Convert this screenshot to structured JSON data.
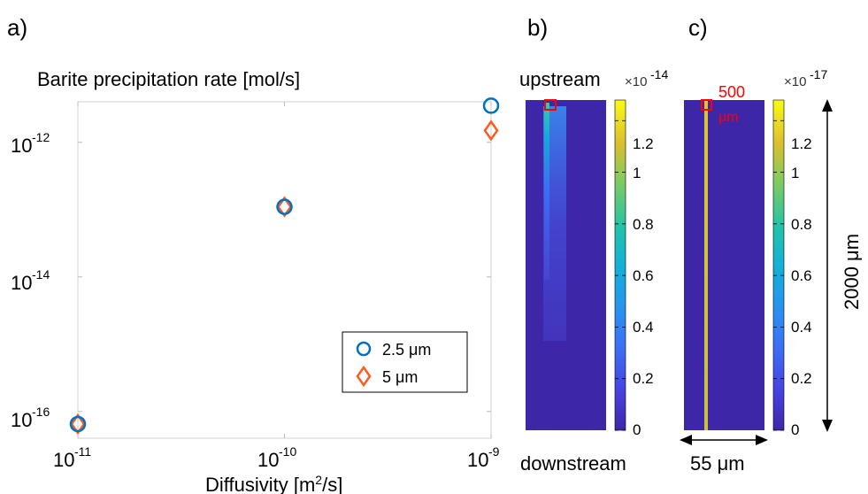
{
  "panels": {
    "a": "a)",
    "b": "b)",
    "c": "c)"
  },
  "chart_data": [
    {
      "type": "scatter",
      "title": "Barite precipitation rate [mol/s]",
      "xlabel_base": "Diffusivity [m",
      "xlabel_sup": "2",
      "xlabel_end": "/s]",
      "ylabel": "",
      "xscale": "log",
      "yscale": "log",
      "xlim": [
        1e-11,
        1e-09
      ],
      "ylim": [
        4e-17,
        4e-12
      ],
      "xticks": [
        {
          "base": "10",
          "exp": "-11",
          "value": 1e-11
        },
        {
          "base": "10",
          "exp": "-10",
          "value": 1e-10
        },
        {
          "base": "10",
          "exp": "-9",
          "value": 1e-09
        }
      ],
      "yticks": [
        {
          "base": "10",
          "exp": "-16",
          "value": 1e-16
        },
        {
          "base": "10",
          "exp": "-14",
          "value": 1e-14
        },
        {
          "base": "10",
          "exp": "-12",
          "value": 1e-12
        }
      ],
      "series": [
        {
          "name": "2.5 μm",
          "marker": "circle",
          "color": "#0072bd",
          "x": [
            1e-11,
            1e-10,
            1e-09
          ],
          "y": [
            6.5e-17,
            1.1e-13,
            3.5e-12
          ]
        },
        {
          "name": "5 μm",
          "marker": "diamond",
          "color": "#ff5a1f",
          "x": [
            1e-11,
            1e-10,
            1e-09
          ],
          "y": [
            6.5e-17,
            1.1e-13,
            1.5e-12
          ]
        }
      ],
      "legend_position": "bottom-right"
    },
    {
      "type": "heatmap",
      "top_label": "upstream",
      "bottom_label": "downstream",
      "colorbar_multiplier_base": "×10",
      "colorbar_multiplier_exp": "-14",
      "colorbar_ticks": [
        "1.2",
        "1",
        "0.8",
        "0.6",
        "0.4",
        "0.2",
        "0"
      ],
      "colorbar_range": [
        0,
        1.28
      ]
    },
    {
      "type": "heatmap",
      "colorbar_multiplier_base": "×10",
      "colorbar_multiplier_exp": "-17",
      "colorbar_ticks": [
        "1.2",
        "1",
        "0.8",
        "0.6",
        "0.4",
        "0.2",
        "0"
      ],
      "colorbar_range": [
        0,
        1.28
      ],
      "red_label_1": "500",
      "red_label_2": "μm",
      "width_label": "55 μm",
      "height_label": "2000 μm"
    }
  ],
  "colors": {
    "field_bg": "#3e26a8",
    "accent_blue": "#0072bd",
    "accent_orange": "#ff5a1f",
    "marker_red": "#ff0000"
  }
}
